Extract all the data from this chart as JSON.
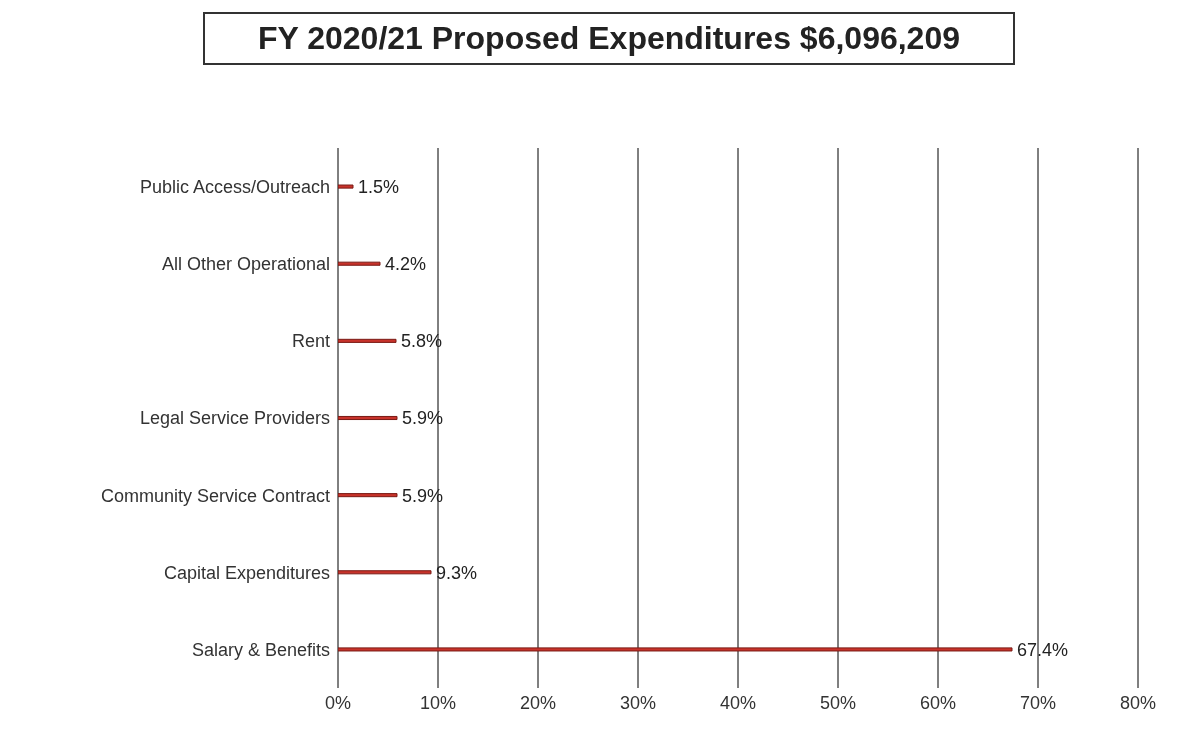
{
  "chart_data": {
    "type": "bar",
    "orientation": "horizontal",
    "title": "FY 2020/21 Proposed Expenditures $6,096,209",
    "categories": [
      "Public Access/Outreach",
      "All Other Operational",
      "Rent",
      "Legal Service Providers",
      "Community Service Contract",
      "Capital Expenditures",
      "Salary & Benefits"
    ],
    "values": [
      1.5,
      4.2,
      5.8,
      5.9,
      5.9,
      9.3,
      67.4
    ],
    "value_labels": [
      "1.5%",
      "4.2%",
      "5.8%",
      "5.9%",
      "5.9%",
      "9.3%",
      "67.4%"
    ],
    "color": "#c8332b",
    "xlim": [
      0,
      80
    ],
    "xticks": [
      {
        "value": 0,
        "label": "0%"
      },
      {
        "value": 10,
        "label": "10%"
      },
      {
        "value": 20,
        "label": "20%"
      },
      {
        "value": 30,
        "label": "30%"
      },
      {
        "value": 40,
        "label": "40%"
      },
      {
        "value": 50,
        "label": "50%"
      },
      {
        "value": 60,
        "label": "60%"
      },
      {
        "value": 70,
        "label": "70%"
      },
      {
        "value": 80,
        "label": "80%"
      }
    ],
    "grid": "x"
  }
}
